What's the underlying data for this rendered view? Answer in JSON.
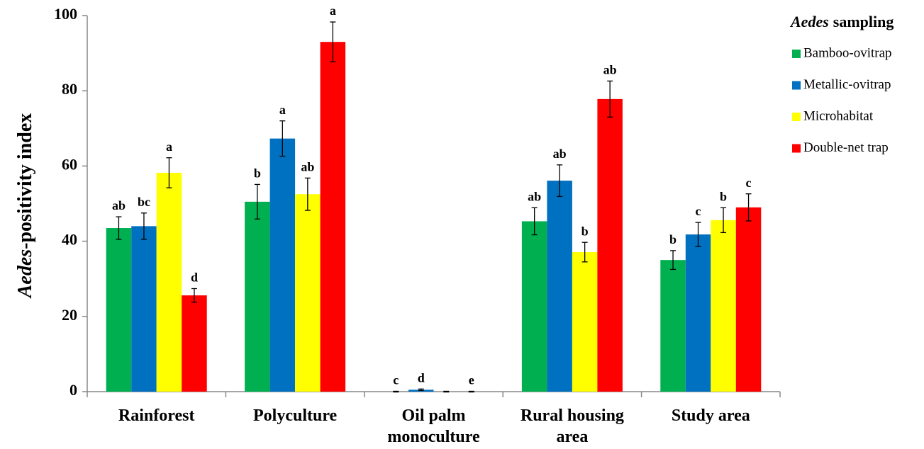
{
  "chart_data": {
    "type": "bar",
    "ylabel": [
      "Aedes",
      "-positivity index"
    ],
    "legend_title": [
      "Aedes",
      "sampling"
    ],
    "categories": [
      "Rainforest",
      "Polyculture",
      "Oil palm monoculture",
      "Rural housing area",
      "Study area"
    ],
    "series": [
      {
        "name": "Bamboo-ovitrap",
        "color": "#00b050",
        "values": [
          43.5,
          50.5,
          0,
          45.3,
          35
        ],
        "errors": [
          3,
          4.6,
          0.1,
          3.6,
          2.5
        ],
        "letters": [
          "ab",
          "b",
          "c",
          "ab",
          "b"
        ]
      },
      {
        "name": "Metallic-ovitrap",
        "color": "#0070c0",
        "values": [
          44,
          67.3,
          0.5,
          56.1,
          41.8
        ],
        "errors": [
          3.5,
          4.7,
          0.2,
          4.2,
          3.2
        ],
        "letters": [
          "bc",
          "a",
          "d",
          "ab",
          "c"
        ]
      },
      {
        "name": "Microhabitat",
        "color": "#ffff00",
        "values": [
          58.2,
          52.5,
          0,
          37.1,
          45.6
        ],
        "errors": [
          4,
          4.3,
          0.1,
          2.6,
          3.3
        ],
        "letters": [
          "a",
          "ab",
          null,
          "b",
          "b"
        ]
      },
      {
        "name": "Double-net trap",
        "color": "#ff0000",
        "values": [
          25.6,
          93,
          0,
          77.8,
          49
        ],
        "errors": [
          1.8,
          5.3,
          0.1,
          4.8,
          3.6
        ],
        "letters": [
          "d",
          "a",
          "e",
          "ab",
          "c"
        ]
      }
    ],
    "ylim": [
      0,
      100
    ],
    "yticks": [
      0,
      20,
      40,
      60,
      80,
      100
    ],
    "grid": false,
    "legend": "right"
  }
}
